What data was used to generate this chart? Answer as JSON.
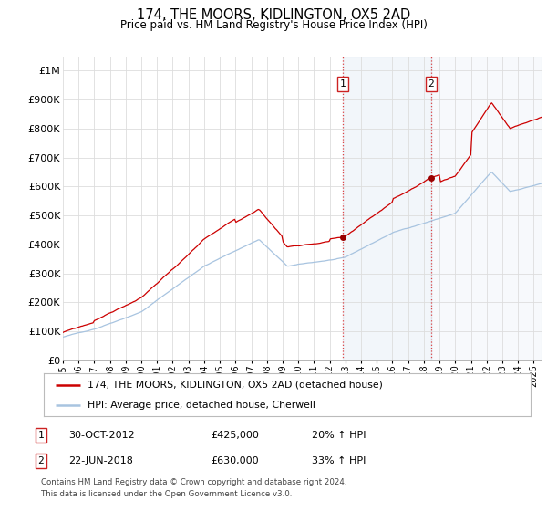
{
  "title": "174, THE MOORS, KIDLINGTON, OX5 2AD",
  "subtitle": "Price paid vs. HM Land Registry's House Price Index (HPI)",
  "yticks": [
    0,
    100000,
    200000,
    300000,
    400000,
    500000,
    600000,
    700000,
    800000,
    900000,
    1000000
  ],
  "ytick_labels": [
    "£0",
    "£100K",
    "£200K",
    "£300K",
    "£400K",
    "£500K",
    "£600K",
    "£700K",
    "£800K",
    "£900K",
    "£1M"
  ],
  "xmin": 1995.0,
  "xmax": 2025.5,
  "ymin": 0,
  "ymax": 1050000,
  "hpi_color": "#a8c4e0",
  "price_color": "#cc0000",
  "marker_color": "#990000",
  "vline_color": "#dd4444",
  "background_color": "#ffffff",
  "grid_color": "#dddddd",
  "purchase1_x": 2012.83,
  "purchase1_y": 425000,
  "purchase2_x": 2018.47,
  "purchase2_y": 630000,
  "legend_line1": "174, THE MOORS, KIDLINGTON, OX5 2AD (detached house)",
  "legend_line2": "HPI: Average price, detached house, Cherwell",
  "annotation1_num": "1",
  "annotation1_date": "30-OCT-2012",
  "annotation1_price": "£425,000",
  "annotation1_hpi": "20% ↑ HPI",
  "annotation2_num": "2",
  "annotation2_date": "22-JUN-2018",
  "annotation2_price": "£630,000",
  "annotation2_hpi": "33% ↑ HPI",
  "footnote1": "Contains HM Land Registry data © Crown copyright and database right 2024.",
  "footnote2": "This data is licensed under the Open Government Licence v3.0."
}
